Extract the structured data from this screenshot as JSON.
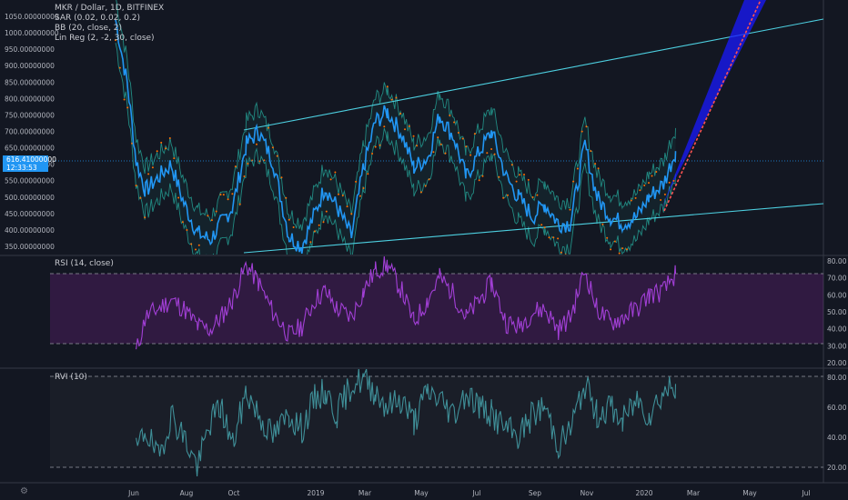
{
  "legend": {
    "main": "MKR / Dollar, 1D, BITFINEX",
    "indicators": [
      "SAR (0.02, 0.02, 0.2)",
      "BB (20, close, 2)",
      "Lin Reg (2, -2, 30, close)"
    ]
  },
  "price_tag": {
    "value": "616.41000000",
    "countdown": "12:33:53"
  },
  "rsi_label": "RSI (14, close)",
  "rvi_label": "RVI (10)",
  "colors": {
    "background": "#131722",
    "price": "#2196f3",
    "sar": "#ff6d00",
    "bb": "#26a69a",
    "channel": "#4dd0e1",
    "rsi": "#9c27b0",
    "rvi": "#3f8f98",
    "linreg_up": "#ff5252",
    "linreg_band": "#1a1aff"
  },
  "icons": {
    "settings": "settings-icon"
  },
  "chart_data": [
    {
      "type": "line",
      "pane": "price",
      "title": "MKR / Dollar, 1D, BITFINEX",
      "x_axis_labels": [
        "Jun",
        "Aug",
        "Oct",
        "2019",
        "Mar",
        "May",
        "Jul",
        "Sep",
        "Nov",
        "2020",
        "Mar",
        "May",
        "Jul"
      ],
      "y_ticks": [
        "1050.00000000",
        "1000.00000000",
        "950.00000000",
        "900.00000000",
        "850.00000000",
        "800.00000000",
        "750.00000000",
        "700.00000000",
        "650.00000000",
        "600.00000000",
        "550.00000000",
        "500.00000000",
        "450.00000000",
        "400.00000000",
        "350.00000000"
      ],
      "ylim": [
        330,
        1070
      ],
      "series": [
        {
          "x": [
            "2018-05-01",
            "2018-05-15",
            "2018-05-25",
            "2018-06-05",
            "2018-06-20",
            "2018-07-05",
            "2018-07-20",
            "2018-08-05",
            "2018-08-20",
            "2018-09-01",
            "2018-09-15",
            "2018-10-01",
            "2018-10-15",
            "2018-11-01",
            "2018-11-20",
            "2018-12-05",
            "2018-12-20",
            "2019-01-01",
            "2019-01-15",
            "2019-02-01",
            "2019-02-15",
            "2019-03-01",
            "2019-03-15",
            "2019-04-01",
            "2019-04-15",
            "2019-05-01",
            "2019-05-15",
            "2019-06-01",
            "2019-06-15",
            "2019-07-01",
            "2019-07-15",
            "2019-08-01",
            "2019-08-15",
            "2019-09-01",
            "2019-09-15",
            "2019-10-01",
            "2019-10-15",
            "2019-11-01",
            "2019-11-15",
            "2019-12-01",
            "2019-12-15",
            "2020-01-01",
            "2020-01-15",
            "2020-02-01",
            "2020-02-15"
          ],
          "y": [
            1040,
            840,
            610,
            520,
            560,
            600,
            480,
            390,
            370,
            420,
            470,
            660,
            700,
            610,
            380,
            350,
            450,
            530,
            470,
            380,
            590,
            730,
            760,
            690,
            590,
            620,
            750,
            680,
            560,
            640,
            700,
            560,
            500,
            440,
            480,
            420,
            420,
            660,
            500,
            440,
            420,
            440,
            500,
            540,
            640
          ]
        }
      ],
      "annotations": [
        "ascending channel",
        "linear regression projection",
        "parabolic SAR",
        "Bollinger Bands"
      ]
    },
    {
      "type": "line",
      "pane": "rsi",
      "title": "RSI (14, close)",
      "y_ticks": [
        "80.00",
        "70.00",
        "60.00",
        "50.00",
        "40.00",
        "30.00",
        "20.00"
      ],
      "ylim": [
        17,
        82
      ],
      "bands": [
        30,
        70
      ],
      "series": [
        {
          "x": [
            "2018-05-25",
            "2018-06-05",
            "2018-06-20",
            "2018-07-05",
            "2018-07-20",
            "2018-08-05",
            "2018-08-20",
            "2018-09-01",
            "2018-09-15",
            "2018-10-01",
            "2018-10-15",
            "2018-11-01",
            "2018-11-20",
            "2018-12-05",
            "2018-12-20",
            "2019-01-01",
            "2019-01-15",
            "2019-02-01",
            "2019-02-15",
            "2019-03-01",
            "2019-03-15",
            "2019-04-01",
            "2019-04-15",
            "2019-05-01",
            "2019-05-15",
            "2019-06-01",
            "2019-06-15",
            "2019-07-01",
            "2019-07-15",
            "2019-08-01",
            "2019-08-15",
            "2019-09-01",
            "2019-09-15",
            "2019-10-01",
            "2019-10-15",
            "2019-11-01",
            "2019-11-15",
            "2019-12-01",
            "2019-12-15",
            "2020-01-01",
            "2020-01-15",
            "2020-02-01",
            "2020-02-15"
          ],
          "y": [
            25,
            45,
            50,
            55,
            50,
            40,
            38,
            45,
            55,
            75,
            65,
            48,
            35,
            40,
            55,
            60,
            50,
            45,
            60,
            72,
            75,
            60,
            42,
            55,
            68,
            58,
            45,
            55,
            65,
            42,
            40,
            48,
            50,
            38,
            45,
            72,
            50,
            42,
            45,
            50,
            58,
            60,
            70
          ]
        }
      ]
    },
    {
      "type": "line",
      "pane": "rvi",
      "title": "RVI (10)",
      "y_ticks": [
        "80.00",
        "60.00",
        "40.00",
        "20.00"
      ],
      "ylim": [
        12,
        85
      ],
      "bands": [
        20,
        80
      ],
      "series": [
        {
          "x": [
            "2018-05-25",
            "2018-06-05",
            "2018-06-20",
            "2018-07-05",
            "2018-07-20",
            "2018-08-05",
            "2018-08-20",
            "2018-09-01",
            "2018-09-15",
            "2018-10-01",
            "2018-10-15",
            "2018-11-01",
            "2018-11-20",
            "2018-12-05",
            "2018-12-20",
            "2019-01-01",
            "2019-01-15",
            "2019-02-01",
            "2019-02-15",
            "2019-03-01",
            "2019-03-15",
            "2019-04-01",
            "2019-04-15",
            "2019-05-01",
            "2019-05-15",
            "2019-06-01",
            "2019-06-15",
            "2019-07-01",
            "2019-07-15",
            "2019-08-01",
            "2019-08-15",
            "2019-09-01",
            "2019-09-15",
            "2019-10-01",
            "2019-10-15",
            "2019-11-01",
            "2019-11-15",
            "2019-12-01",
            "2019-12-15",
            "2020-01-01",
            "2020-01-15",
            "2020-02-01",
            "2020-02-15"
          ],
          "y": [
            30,
            45,
            25,
            55,
            40,
            20,
            50,
            60,
            35,
            70,
            55,
            40,
            55,
            45,
            65,
            70,
            55,
            75,
            78,
            70,
            60,
            65,
            50,
            70,
            65,
            55,
            70,
            60,
            55,
            45,
            40,
            55,
            60,
            35,
            45,
            75,
            55,
            60,
            50,
            65,
            55,
            70,
            75
          ]
        }
      ]
    }
  ]
}
